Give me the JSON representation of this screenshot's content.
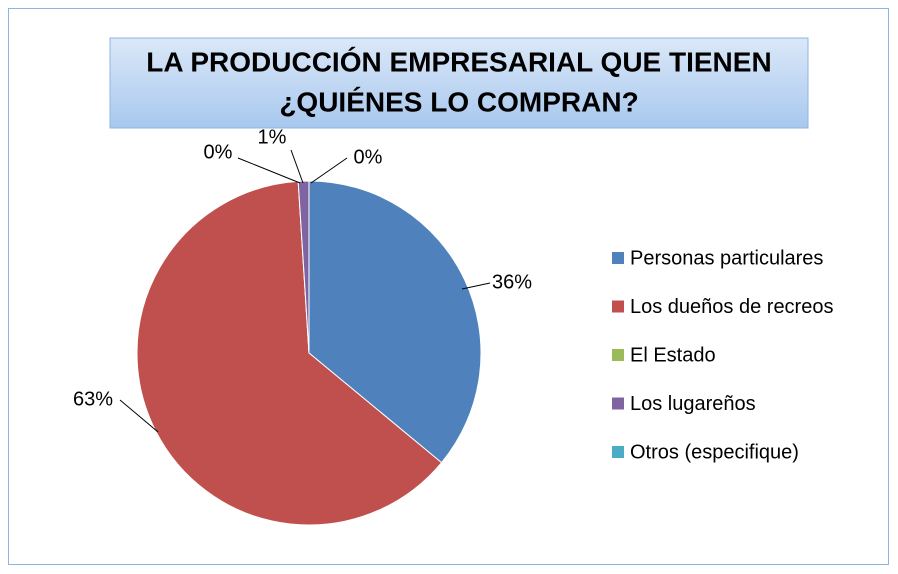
{
  "chart_data": {
    "type": "pie",
    "title": [
      "LA PRODUCCIÓN EMPRESARIAL QUE TIENEN",
      "¿QUIÉNES LO COMPRAN?"
    ],
    "categories": [
      "Personas particulares",
      "Los dueños de recreos",
      "El Estado",
      "Los lugareños",
      "Otros (especifique)"
    ],
    "values": [
      36,
      63,
      0,
      1,
      0
    ],
    "value_labels": [
      "36%",
      "63%",
      "0%",
      "1%",
      "0%"
    ],
    "colors": [
      "#4f81bd",
      "#c0504d",
      "#9bbb59",
      "#8064a2",
      "#4bacc6"
    ],
    "legend": "right"
  }
}
